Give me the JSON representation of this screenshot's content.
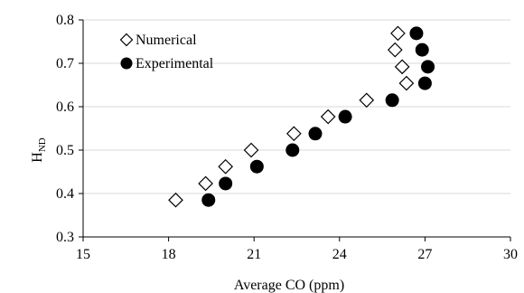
{
  "chart_data": {
    "type": "scatter",
    "xlabel": "Average CO (ppm)",
    "ylabel": "H",
    "ylabel_sub": "ND",
    "xlim": [
      15,
      30
    ],
    "ylim": [
      0.3,
      0.8
    ],
    "x_ticks": [
      15,
      18,
      21,
      24,
      27,
      30
    ],
    "x_tick_labels": [
      "15",
      "18",
      "21",
      "24",
      "27",
      "30"
    ],
    "y_ticks": [
      0.3,
      0.4,
      0.5,
      0.6,
      0.7,
      0.8
    ],
    "y_tick_labels": [
      "0.3",
      "0.4",
      "0.5",
      "0.6",
      "0.7",
      "0.8"
    ],
    "grid": "horizontal",
    "legend_position": "top-left",
    "series": [
      {
        "name": "Numerical",
        "marker": "diamond-open",
        "color": "#000000",
        "points": [
          {
            "x": 18.25,
            "y": 0.385
          },
          {
            "x": 19.3,
            "y": 0.423
          },
          {
            "x": 20.0,
            "y": 0.462
          },
          {
            "x": 20.9,
            "y": 0.5
          },
          {
            "x": 22.4,
            "y": 0.538
          },
          {
            "x": 23.6,
            "y": 0.577
          },
          {
            "x": 24.95,
            "y": 0.615
          },
          {
            "x": 26.35,
            "y": 0.654
          },
          {
            "x": 26.2,
            "y": 0.692
          },
          {
            "x": 25.95,
            "y": 0.731
          },
          {
            "x": 26.05,
            "y": 0.769
          }
        ]
      },
      {
        "name": "Experimental",
        "marker": "circle-filled",
        "color": "#000000",
        "points": [
          {
            "x": 19.4,
            "y": 0.385
          },
          {
            "x": 20.0,
            "y": 0.423
          },
          {
            "x": 21.1,
            "y": 0.462
          },
          {
            "x": 22.35,
            "y": 0.5
          },
          {
            "x": 23.15,
            "y": 0.538
          },
          {
            "x": 24.2,
            "y": 0.577
          },
          {
            "x": 25.85,
            "y": 0.615
          },
          {
            "x": 27.0,
            "y": 0.654
          },
          {
            "x": 27.1,
            "y": 0.692
          },
          {
            "x": 26.9,
            "y": 0.731
          },
          {
            "x": 26.7,
            "y": 0.769
          }
        ]
      }
    ]
  }
}
